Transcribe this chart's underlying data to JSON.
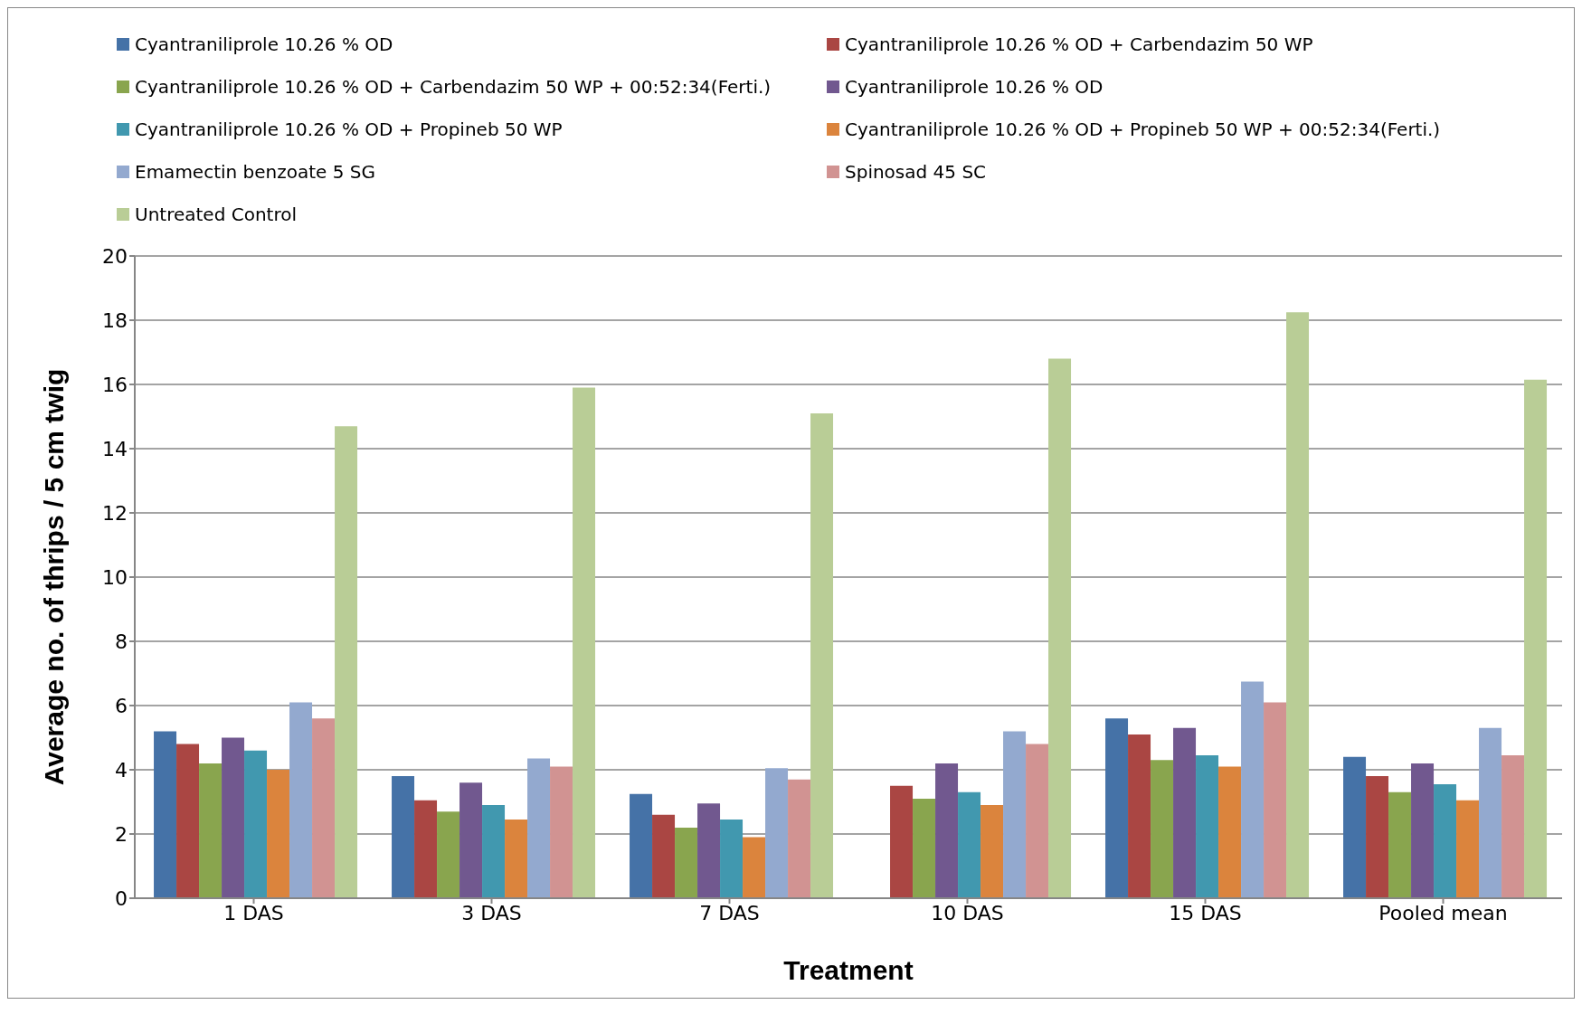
{
  "chart_data": {
    "type": "bar",
    "xlabel": "Treatment",
    "ylabel": "Average no. of  thrips / 5 cm twig",
    "categories": [
      "1 DAS",
      "3 DAS",
      "7 DAS",
      "10 DAS",
      "15 DAS",
      "Pooled mean"
    ],
    "series": [
      {
        "name": "Cyantraniliprole 10.26 % OD",
        "color": "#4572a7",
        "values": [
          5.2,
          3.8,
          3.25,
          null,
          5.6,
          4.4
        ]
      },
      {
        "name": "Cyantraniliprole 10.26 % OD + Carbendazim 50 WP",
        "color": "#aa4643",
        "values": [
          4.8,
          3.05,
          2.6,
          3.5,
          5.1,
          3.8
        ]
      },
      {
        "name": "Cyantraniliprole 10.26 % OD + Carbendazim 50 WP + 00:52:34(Ferti.)",
        "color": "#89a54e",
        "values": [
          4.2,
          2.7,
          2.2,
          3.1,
          4.3,
          3.3
        ]
      },
      {
        "name": "Cyantraniliprole 10.26 % OD",
        "color": "#71588f",
        "values": [
          5.0,
          3.6,
          2.95,
          4.2,
          5.3,
          4.2
        ]
      },
      {
        "name": "Cyantraniliprole 10.26 % OD + Propineb 50 WP",
        "color": "#4198af",
        "values": [
          4.6,
          2.9,
          2.45,
          3.3,
          4.45,
          3.55
        ]
      },
      {
        "name": "Cyantraniliprole 10.26 % OD + Propineb 50 WP + 00:52:34(Ferti.)",
        "color": "#db843d",
        "values": [
          4.0,
          2.45,
          1.9,
          2.9,
          4.1,
          3.05
        ]
      },
      {
        "name": "Emamectin benzoate 5 SG",
        "color": "#93a9cf",
        "values": [
          6.1,
          4.35,
          4.05,
          5.2,
          6.75,
          5.3
        ]
      },
      {
        "name": "Spinosad 45 SC",
        "color": "#d19392",
        "values": [
          5.6,
          4.1,
          3.7,
          4.8,
          6.1,
          4.45
        ]
      },
      {
        "name": "Untreated Control",
        "color": "#b9cd96",
        "values": [
          14.7,
          15.9,
          15.1,
          16.8,
          18.25,
          16.15
        ]
      }
    ],
    "ylim": [
      0,
      20
    ],
    "yticks": [
      0,
      2,
      4,
      6,
      8,
      10,
      12,
      14,
      16,
      18,
      20
    ],
    "grid": "y",
    "legend": "top"
  }
}
